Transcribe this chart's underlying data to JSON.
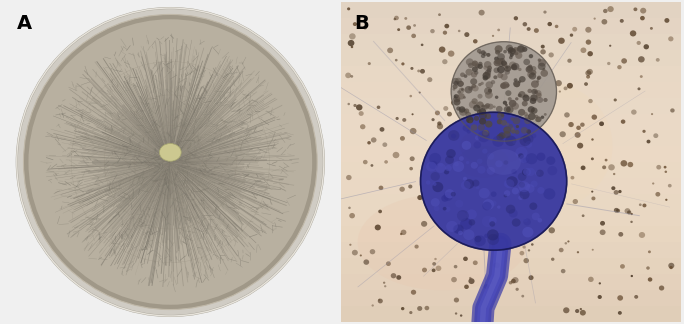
{
  "figure_width": 6.84,
  "figure_height": 3.24,
  "dpi": 100,
  "background_color": "#f0f0f0",
  "label_A": "A",
  "label_B": "B",
  "label_fontsize": 14,
  "label_fontweight": "bold",
  "label_color": "#000000",
  "panel_A_bg": "#f5f5f5",
  "panel_B_bg": "#e8d8b8",
  "dish_outer_color": "#d0ccc0",
  "dish_inner_color": "#b8b0a0",
  "colony_base_color": "#9a9080",
  "center_spot_color": "#d4c890",
  "upper_spor_color": "#7a706a",
  "main_spor_color": "#3a3878",
  "stalk_color": "#4848a0",
  "spore_color": "#8a7060",
  "bg_spore_color": "#b09070"
}
